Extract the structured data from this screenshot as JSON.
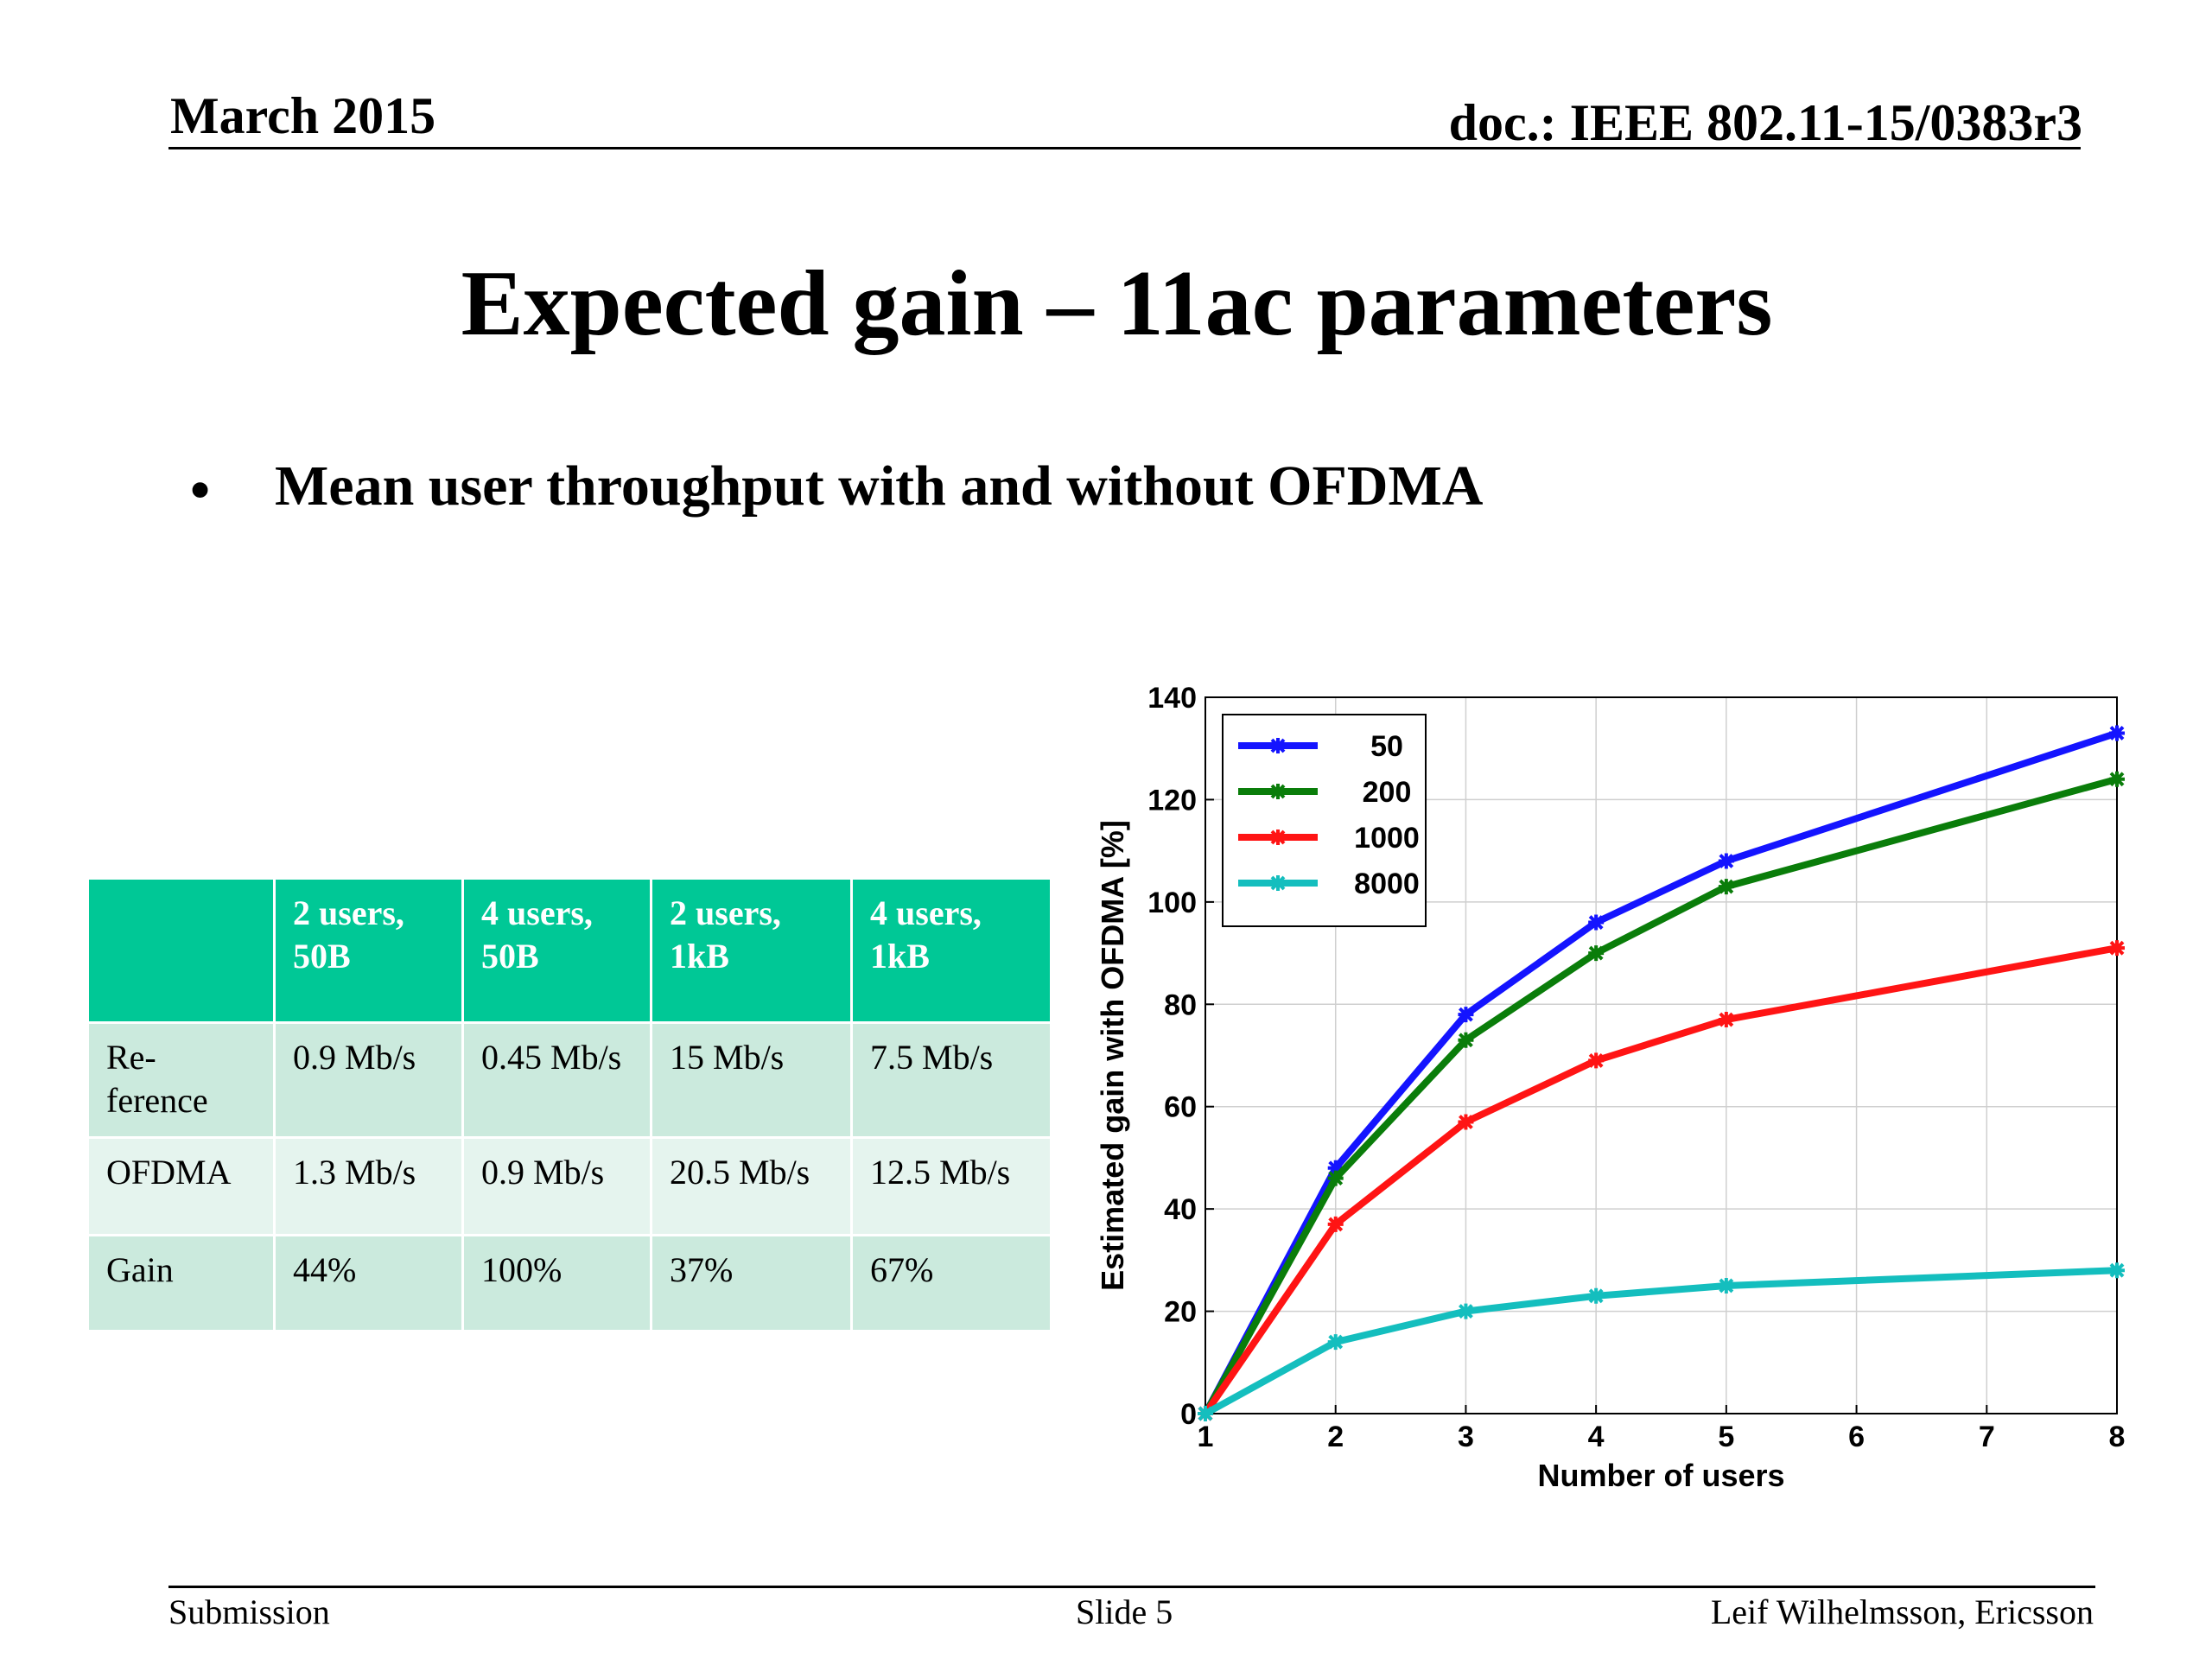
{
  "header": {
    "date": "March 2015",
    "doc_id": "doc.: IEEE 802.11-15/0383r3"
  },
  "title": "Expected gain – 11ac parameters",
  "bullet": {
    "symbol": "•",
    "text": "Mean user throughput with and without OFDMA"
  },
  "table": {
    "headers": [
      "",
      "2 users, 50B",
      "4 users, 50B",
      "2 users, 1kB",
      "4 users, 1kB"
    ],
    "rows": [
      [
        "Re-ference",
        "0.9 Mb/s",
        "0.45 Mb/s",
        "15 Mb/s",
        "7.5 Mb/s"
      ],
      [
        "OFDMA",
        "1.3 Mb/s",
        "0.9 Mb/s",
        "20.5 Mb/s",
        "12.5 Mb/s"
      ],
      [
        "Gain",
        "44%",
        "100%",
        "37%",
        "67%"
      ]
    ],
    "colors": {
      "header_bg": "#00c896",
      "row_dark": "#cbeadd",
      "row_light": "#e5f4ee"
    }
  },
  "chart_data": {
    "type": "line",
    "xlabel": "Number of users",
    "ylabel": "Estimated gain with OFDMA [%]",
    "xlim": [
      1,
      8
    ],
    "ylim": [
      0,
      140
    ],
    "xticks": [
      1,
      2,
      3,
      4,
      5,
      6,
      7,
      8
    ],
    "yticks": [
      0,
      20,
      40,
      60,
      80,
      100,
      120,
      140
    ],
    "grid": true,
    "legend_position": "top-left",
    "marker": "star",
    "series": [
      {
        "name": "50",
        "color": "#1414ff",
        "x": [
          1,
          2,
          3,
          4,
          5,
          8
        ],
        "values": [
          0,
          48,
          78,
          96,
          108,
          133
        ]
      },
      {
        "name": "200",
        "color": "#0a7d0a",
        "x": [
          1,
          2,
          3,
          4,
          5,
          8
        ],
        "values": [
          0,
          46,
          73,
          90,
          103,
          124
        ]
      },
      {
        "name": "1000",
        "color": "#ff1414",
        "x": [
          1,
          2,
          3,
          4,
          5,
          8
        ],
        "values": [
          0,
          37,
          57,
          69,
          77,
          91
        ]
      },
      {
        "name": "8000",
        "color": "#14bebe",
        "x": [
          1,
          2,
          3,
          4,
          5,
          8
        ],
        "values": [
          0,
          14,
          20,
          23,
          25,
          28
        ]
      }
    ]
  },
  "footer": {
    "left": "Submission",
    "center": "Slide 5",
    "right": "Leif Wilhelmsson, Ericsson"
  }
}
